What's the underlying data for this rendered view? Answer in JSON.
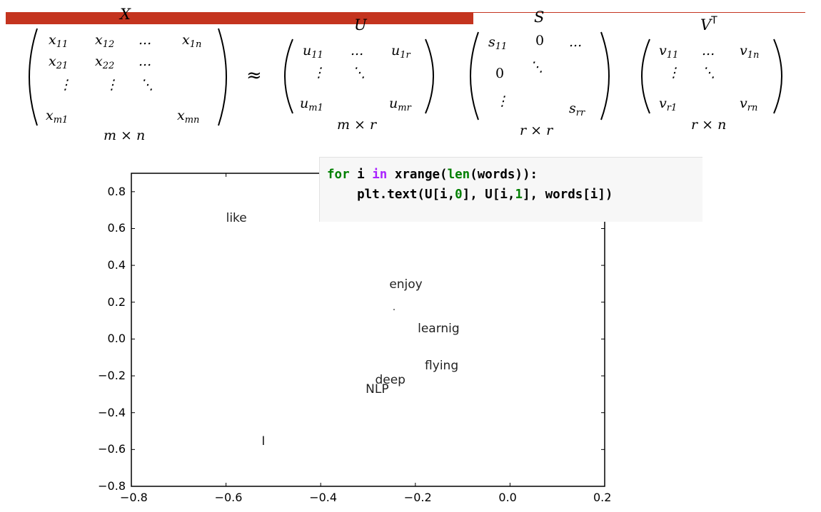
{
  "colors": {
    "accent_bar": "#c4341f",
    "rule": "#c4341f"
  },
  "matrices": {
    "X": {
      "title": "X",
      "rows": [
        [
          "x11",
          "x12",
          "...",
          "x1n"
        ],
        [
          "x21",
          "x22",
          "...",
          ""
        ],
        [
          "⋮",
          "⋮",
          "⋱",
          ""
        ],
        [
          "xm1",
          "",
          "",
          "xmn"
        ]
      ],
      "dim": "m × n"
    },
    "approx_symbol": "≈",
    "U": {
      "title": "U",
      "rows": [
        [
          "u11",
          "...",
          "u1r"
        ],
        [
          "⋮",
          "⋱",
          ""
        ],
        [
          "um1",
          "",
          "umr"
        ]
      ],
      "dim": "m × r"
    },
    "S": {
      "title": "S",
      "rows": [
        [
          "s11",
          "0",
          "..."
        ],
        [
          "0",
          "⋱",
          ""
        ],
        [
          "⋮",
          "",
          "srr"
        ]
      ],
      "dim": "r × r"
    },
    "V": {
      "title": "V",
      "title_sup": "T",
      "rows": [
        [
          "v11",
          "...",
          "v1n"
        ],
        [
          "⋮",
          "⋱",
          ""
        ],
        [
          "vr1",
          "",
          "vrn"
        ]
      ],
      "dim": "r × n"
    }
  },
  "code": {
    "line1": {
      "kw_for": "for",
      "var": " i ",
      "kw_in": "in",
      "rest_a": " xrange(",
      "fn_len": "len",
      "rest_b": "(words)):"
    },
    "line2": {
      "pre": "    plt.text(U[i,",
      "n0": "0",
      "mid": "], U[i,",
      "n1": "1",
      "post": "], words[i])"
    }
  },
  "chart_data": {
    "type": "scatter",
    "title": "",
    "xlabel": "",
    "ylabel": "",
    "xlim": [
      -0.8,
      0.2
    ],
    "ylim": [
      -0.8,
      0.9
    ],
    "x_ticks": [
      -0.8,
      -0.6,
      -0.4,
      -0.2,
      0.0,
      0.2
    ],
    "x_tick_labels": [
      "−0.8",
      "−0.6",
      "−0.4",
      "−0.2",
      "0.0",
      "0.2"
    ],
    "y_ticks": [
      -0.8,
      -0.6,
      -0.4,
      -0.2,
      0.0,
      0.2,
      0.4,
      0.6,
      0.8
    ],
    "y_tick_labels": [
      "−0.8",
      "−0.6",
      "−0.4",
      "−0.2",
      "0.0",
      "0.2",
      "0.4",
      "0.6",
      "0.8"
    ],
    "grid": false,
    "points": [
      {
        "label": "like",
        "x": -0.6,
        "y": 0.64
      },
      {
        "label": "enjoy",
        "x": -0.255,
        "y": 0.28
      },
      {
        "label": "learnig",
        "x": -0.195,
        "y": 0.04
      },
      {
        "label": "flying",
        "x": -0.18,
        "y": -0.16
      },
      {
        "label": "deep",
        "x": -0.285,
        "y": -0.24
      },
      {
        "label": "NLP",
        "x": -0.305,
        "y": -0.29
      },
      {
        "label": "I",
        "x": -0.525,
        "y": -0.57
      }
    ],
    "markers": [
      {
        "x": -0.245,
        "y": 0.16
      }
    ]
  }
}
